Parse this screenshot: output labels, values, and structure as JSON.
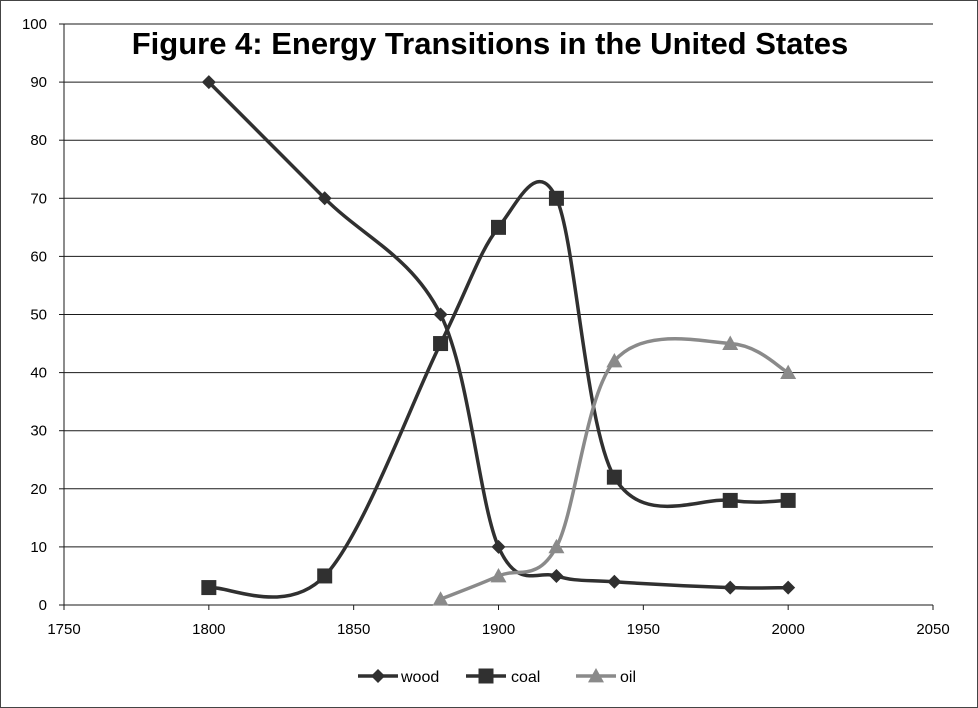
{
  "chart_data": {
    "type": "line",
    "title": "Figure 4:  Energy Transitions in the United States",
    "xlabel": "",
    "ylabel": "",
    "xlim": [
      1750,
      2050
    ],
    "ylim": [
      0,
      100
    ],
    "x_ticks": [
      "1750",
      "1800",
      "1850",
      "1900",
      "1950",
      "2000",
      "2050"
    ],
    "y_ticks": [
      "0",
      "10",
      "20",
      "30",
      "40",
      "50",
      "60",
      "70",
      "80",
      "90",
      "100"
    ],
    "grid": "horizontal",
    "smooth": true,
    "legend_position": "bottom",
    "series": [
      {
        "name": "wood",
        "marker": "diamond",
        "color": "#303030",
        "x": [
          1800,
          1840,
          1880,
          1900,
          1920,
          1940,
          1980,
          2000
        ],
        "y": [
          90,
          70,
          50,
          10,
          5,
          4,
          3,
          3
        ]
      },
      {
        "name": "coal",
        "marker": "square",
        "color": "#303030",
        "x": [
          1800,
          1840,
          1880,
          1900,
          1920,
          1940,
          1980,
          2000
        ],
        "y": [
          3,
          5,
          45,
          65,
          70,
          22,
          18,
          18
        ]
      },
      {
        "name": "oil",
        "marker": "triangle",
        "color": "#8a8a8a",
        "x": [
          1880,
          1900,
          1920,
          1940,
          1980,
          2000
        ],
        "y": [
          1,
          5,
          10,
          42,
          45,
          40
        ]
      }
    ]
  }
}
